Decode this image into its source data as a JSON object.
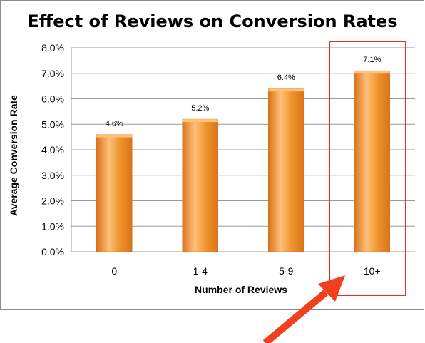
{
  "chart_data": {
    "type": "bar",
    "title": "Effect of Reviews on Conversion Rates",
    "xlabel": "Number of Reviews",
    "ylabel": "Average Conversion Rate",
    "categories": [
      "0",
      "1-4",
      "5-9",
      "10+"
    ],
    "values": [
      4.6,
      5.2,
      6.4,
      7.1
    ],
    "data_labels": [
      "4.6%",
      "5.2%",
      "6.4%",
      "7.1%"
    ],
    "y_ticks": [
      "0.0%",
      "1.0%",
      "2.0%",
      "3.0%",
      "4.0%",
      "5.0%",
      "6.0%",
      "7.0%",
      "8.0%"
    ],
    "ylim": [
      0,
      8
    ],
    "y_unit": "%",
    "grid": "horizontal",
    "legend": "none",
    "highlighted_category": "10+",
    "colors": {
      "bar": "#f0952e",
      "bar_light": "#ffc07a",
      "bar_dark": "#d9731a",
      "grid": "#9a9a9a",
      "highlight_box": "#e8321c",
      "arrow": "#f2401e",
      "frame": "#8c8c8c"
    }
  }
}
